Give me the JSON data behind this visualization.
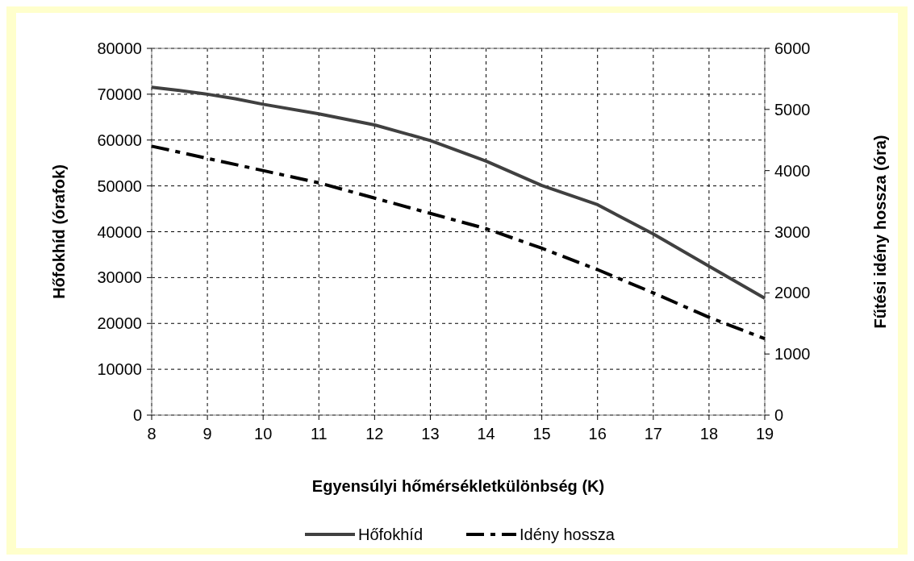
{
  "chart_data": {
    "type": "line",
    "xlabel": "Egyensúlyi hőmérsékletkülönbség (K)",
    "ylabel": "Hőfokhíd (órafok)",
    "y2label": "Fűtési idény hossza (óra)",
    "xlim": [
      8,
      19
    ],
    "xticks": [
      8,
      9,
      10,
      11,
      12,
      13,
      14,
      15,
      16,
      17,
      18,
      19
    ],
    "ylim": [
      0,
      80000
    ],
    "yticks": [
      0,
      10000,
      20000,
      30000,
      40000,
      50000,
      60000,
      70000,
      80000
    ],
    "y2lim": [
      0,
      6000
    ],
    "y2ticks": [
      0,
      1000,
      2000,
      3000,
      4000,
      5000,
      6000
    ],
    "grid": true,
    "legend": "bottom",
    "series": [
      {
        "name": "Hőfokhíd",
        "color": "#404040",
        "line_style": "solid",
        "x": [
          8,
          8.5,
          9,
          9.5,
          10,
          11,
          12,
          13,
          14,
          15,
          16,
          17,
          18,
          19
        ],
        "values": [
          71500,
          70800,
          70000,
          69000,
          67800,
          65700,
          63300,
          59900,
          55400,
          50100,
          45900,
          39500,
          32500,
          25500
        ]
      },
      {
        "name": "Idény hossza",
        "color": "#000000",
        "line_style": "dashed",
        "axis": "y2",
        "x": [
          8,
          9,
          10,
          11,
          12,
          13,
          14,
          15,
          16,
          17,
          18,
          19
        ],
        "values": [
          4400,
          4200,
          4000,
          3800,
          3550,
          3300,
          3050,
          2730,
          2380,
          2000,
          1600,
          1250
        ]
      }
    ]
  }
}
